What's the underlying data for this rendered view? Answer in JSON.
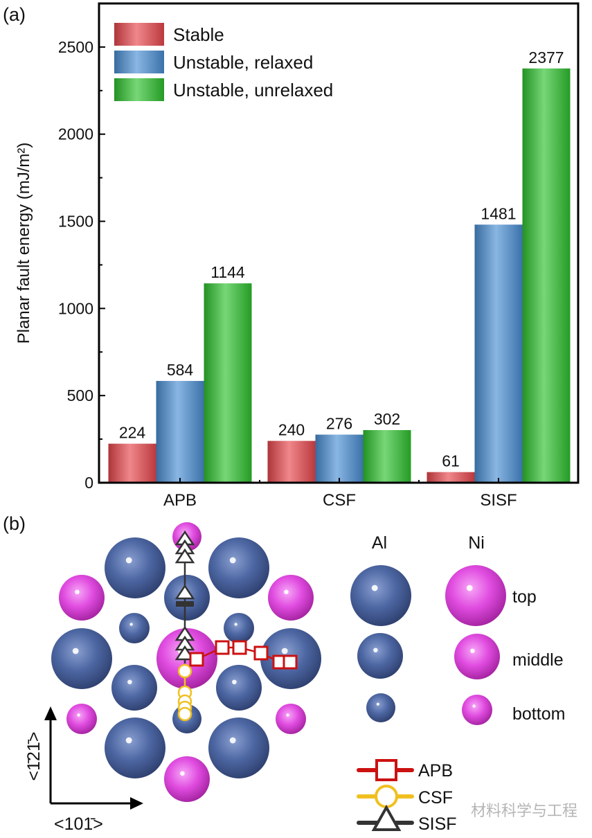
{
  "panel_a_label": "(a)",
  "panel_b_label": "(b)",
  "chart_data": {
    "type": "bar",
    "title": "",
    "xlabel": "",
    "ylabel": "Planar fault energy (mJ/m²)",
    "ylim": [
      0,
      2750
    ],
    "yticks": [
      0,
      500,
      1000,
      1500,
      2000,
      2500
    ],
    "categories": [
      "APB",
      "CSF",
      "SISF"
    ],
    "series": [
      {
        "name": "Stable",
        "values": [
          224,
          240,
          61
        ],
        "color": "#e8474c"
      },
      {
        "name": "Unstable, relaxed",
        "values": [
          584,
          276,
          1481
        ],
        "color": "#4a8fd4"
      },
      {
        "name": "Unstable, unrelaxed",
        "values": [
          1144,
          302,
          2377
        ],
        "color": "#2ec22e"
      }
    ],
    "data_labels": true,
    "legend_position": "top-left",
    "grid": false
  },
  "diagram": {
    "axis_vertical_label": "<1̄21̄>",
    "axis_horizontal_label": "<101̄>",
    "species_headers": [
      "Al",
      "Ni"
    ],
    "layer_labels": [
      "top",
      "middle",
      "bottom"
    ],
    "colors": {
      "Al": "#4a64a0",
      "Ni": "#e048e0",
      "APB": "#cc1111",
      "CSF": "#f0c020",
      "SISF": "#333333"
    },
    "path_legend": [
      "APB",
      "CSF",
      "SISF"
    ]
  },
  "watermark": "材料科学与工程"
}
